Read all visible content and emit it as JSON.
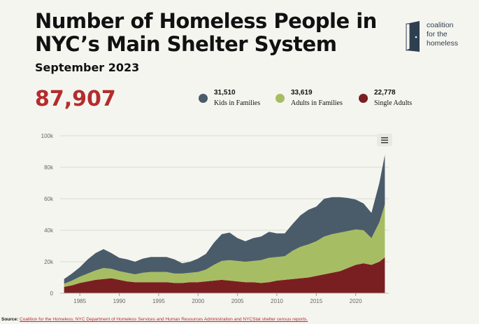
{
  "header": {
    "title": "Number of Homeless People in NYC’s Main Shelter System",
    "subtitle": "September 2023",
    "total": "87,907"
  },
  "logo": {
    "line1": "coalition",
    "line2": "for the",
    "line3": "homeless"
  },
  "legend": [
    {
      "value": "31,510",
      "label": "Kids in Families",
      "color": "#4a5c6a"
    },
    {
      "value": "33,619",
      "label": "Adults in Families",
      "color": "#a7bd63"
    },
    {
      "value": "22,778",
      "label": "Single Adults",
      "color": "#7a1f21"
    }
  ],
  "source": {
    "prefix": "Source: ",
    "text": "Coalition for the Homeless; NYC Department of Homeless Services and Human Resources Administration and NYCStat shelter census reports."
  },
  "chart_data": {
    "type": "area",
    "stacked": true,
    "x": [
      1983,
      1984,
      1985,
      1986,
      1987,
      1988,
      1989,
      1990,
      1991,
      1992,
      1993,
      1994,
      1995,
      1996,
      1997,
      1998,
      1999,
      2000,
      2001,
      2002,
      2003,
      2004,
      2005,
      2006,
      2007,
      2008,
      2009,
      2010,
      2011,
      2012,
      2013,
      2014,
      2015,
      2016,
      2017,
      2018,
      2019,
      2020,
      2021,
      2022,
      2023,
      2023.7
    ],
    "series": [
      {
        "name": "Single Adults",
        "color": "#7a1f21",
        "values": [
          4000,
          5000,
          6500,
          7500,
          8500,
          9000,
          9500,
          8500,
          7500,
          7000,
          7000,
          7000,
          7000,
          7000,
          6500,
          6500,
          7000,
          7000,
          7500,
          8000,
          8500,
          8000,
          7500,
          7000,
          7000,
          6500,
          7000,
          8000,
          8500,
          9000,
          9500,
          10000,
          11000,
          12000,
          13000,
          14000,
          16000,
          18000,
          19000,
          18000,
          20000,
          22778
        ]
      },
      {
        "name": "Adults in Families",
        "color": "#a7bd63",
        "values": [
          2000,
          3000,
          4000,
          5000,
          6000,
          7000,
          6000,
          5500,
          5500,
          5000,
          6000,
          6500,
          6500,
          6500,
          6000,
          6000,
          6000,
          6500,
          7500,
          10000,
          12000,
          13000,
          13000,
          13000,
          13500,
          14500,
          15500,
          15000,
          15000,
          18000,
          20000,
          21000,
          22000,
          24000,
          24500,
          24500,
          23500,
          22500,
          21000,
          17000,
          25000,
          33619
        ]
      },
      {
        "name": "Kids in Families",
        "color": "#4a5c6a",
        "values": [
          3000,
          4500,
          6000,
          9000,
          11000,
          12000,
          10000,
          8500,
          8500,
          8000,
          9000,
          9500,
          9500,
          9500,
          9000,
          6500,
          7000,
          8500,
          10000,
          14000,
          17000,
          17500,
          14500,
          13000,
          14500,
          15000,
          16500,
          15000,
          14500,
          17000,
          20000,
          22000,
          22000,
          24000,
          23500,
          22500,
          21000,
          19000,
          17000,
          16000,
          25000,
          31510
        ]
      }
    ],
    "xticks": [
      "1985",
      "1990",
      "1995",
      "2000",
      "2005",
      "2010",
      "2015",
      "2020"
    ],
    "yticks": [
      "0",
      "20k",
      "40k",
      "60k",
      "80k",
      "100k"
    ],
    "ylim": [
      0,
      100000
    ],
    "xlim": [
      1982.5,
      2024.2
    ],
    "grid": true
  }
}
